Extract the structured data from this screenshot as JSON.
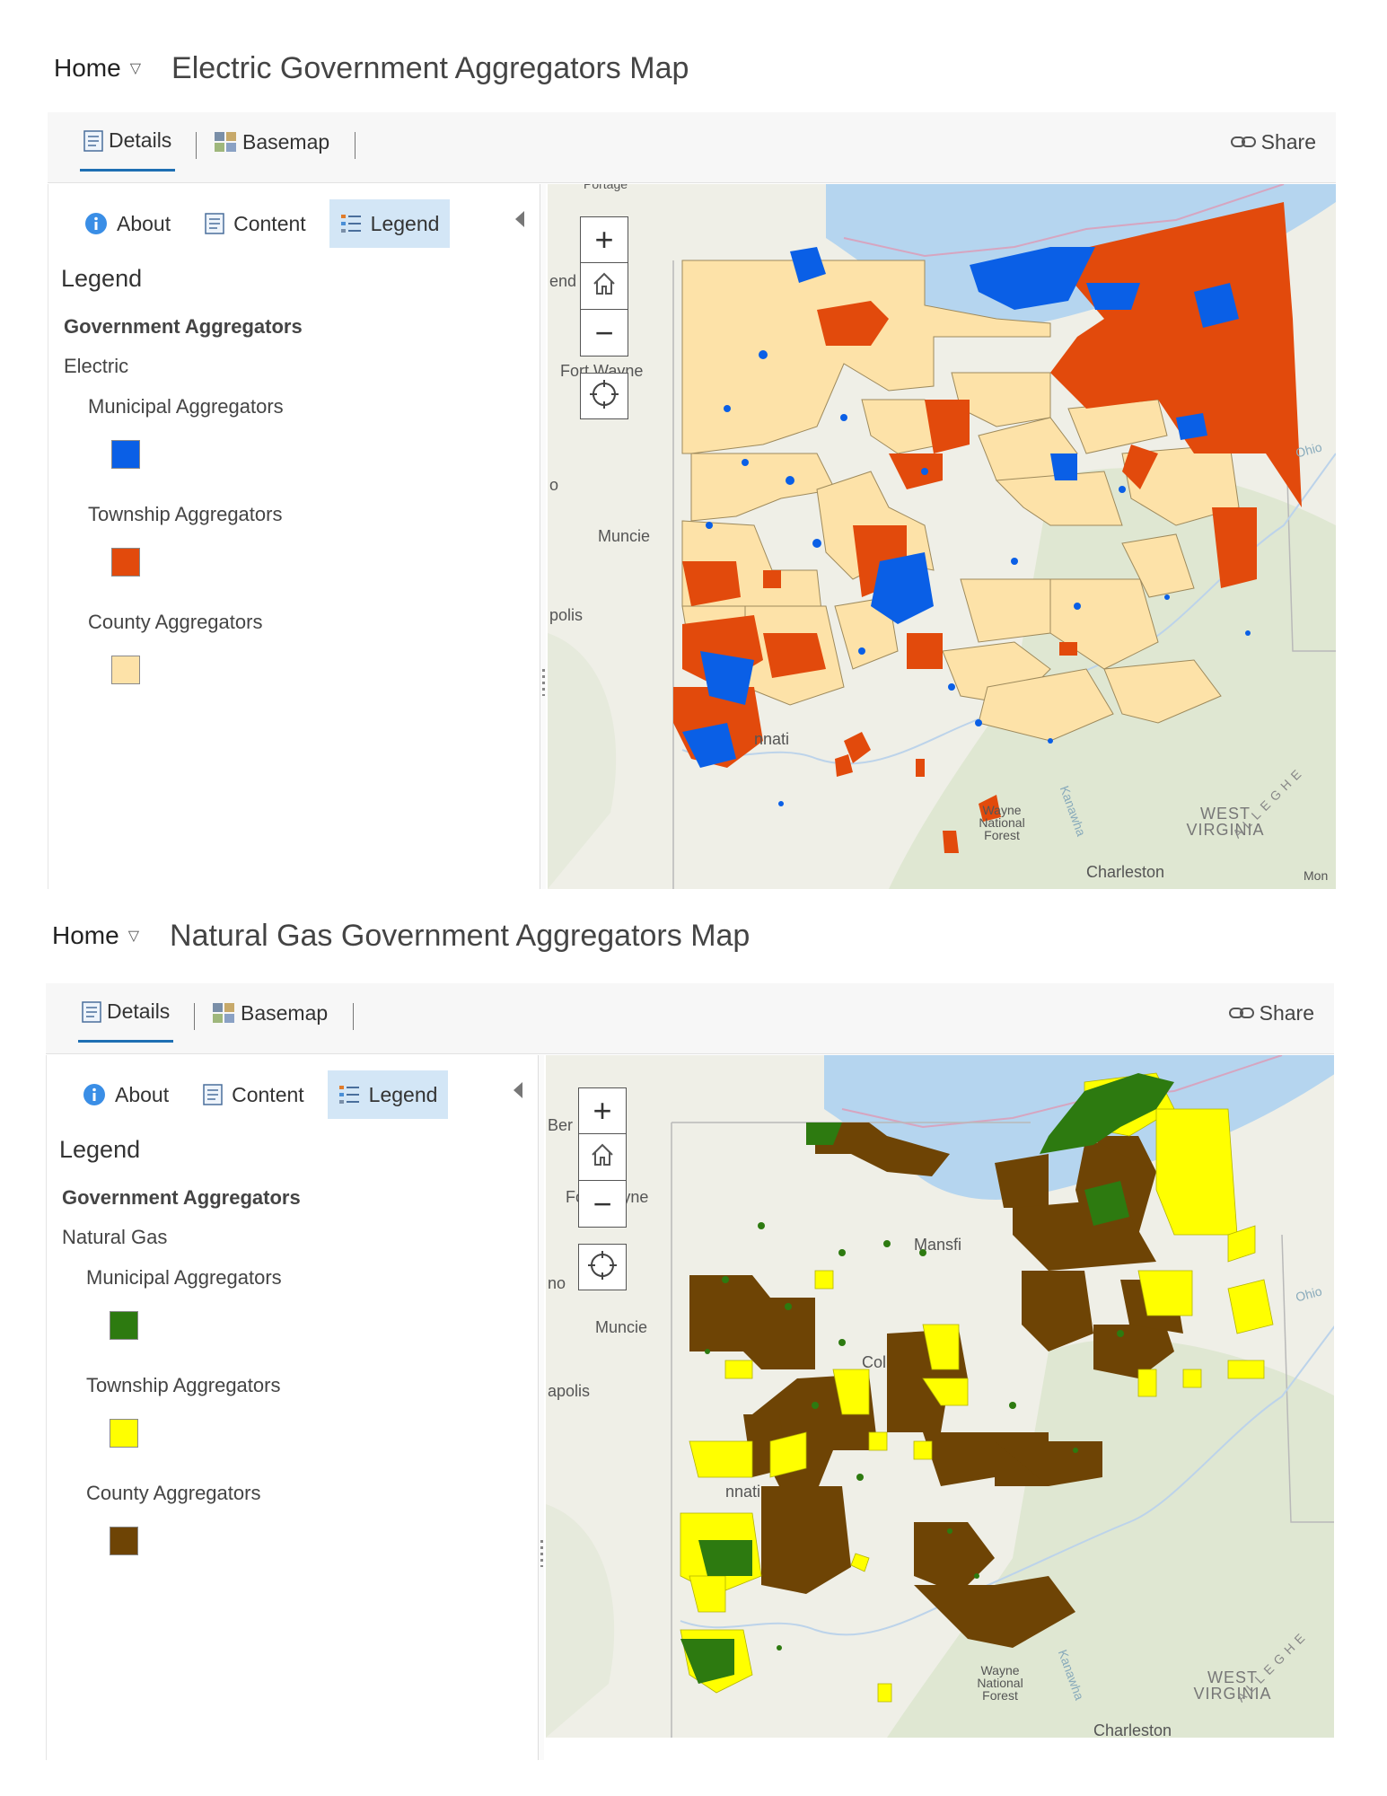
{
  "maps": [
    {
      "header": {
        "home_label": "Home",
        "title": "Electric Government Aggregators Map"
      },
      "toolbar": {
        "details_label": "Details",
        "basemap_label": "Basemap",
        "share_label": "Share"
      },
      "side_tabs": {
        "about_label": "About",
        "content_label": "Content",
        "legend_label": "Legend"
      },
      "legend": {
        "heading": "Legend",
        "group": "Government Aggregators",
        "layer": "Electric",
        "items": [
          {
            "label": "Municipal Aggregators",
            "color": "#0a5fe6"
          },
          {
            "label": "Township Aggregators",
            "color": "#e24a0c"
          },
          {
            "label": "County Aggregators",
            "color": "#fde2a8"
          }
        ]
      },
      "map_labels": {
        "portage": "Portage",
        "fort_wayne": "Fort Wayne",
        "muncie": "Muncie",
        "indianapolis": "polis",
        "cincinnati": "nnati",
        "ohio_river": "Ohio",
        "wayne_forest": "Wayne National Forest",
        "kanawha": "Kanawha",
        "west_virginia": "WEST VIRGINIA",
        "charleston": "Charleston",
        "allegheny": "ALLEGHE",
        "left_o": "o",
        "left_end": "end",
        "monongahela": "Mon"
      }
    },
    {
      "header": {
        "home_label": "Home",
        "title": "Natural Gas Government Aggregators Map"
      },
      "toolbar": {
        "details_label": "Details",
        "basemap_label": "Basemap",
        "share_label": "Share"
      },
      "side_tabs": {
        "about_label": "About",
        "content_label": "Content",
        "legend_label": "Legend"
      },
      "legend": {
        "heading": "Legend",
        "group": "Government Aggregators",
        "layer": "Natural Gas",
        "items": [
          {
            "label": "Municipal Aggregators",
            "color": "#2d7a10"
          },
          {
            "label": "Township Aggregators",
            "color": "#ffff00"
          },
          {
            "label": "County Aggregators",
            "color": "#6e4405"
          }
        ]
      },
      "map_labels": {
        "fort_wayne": "Fort Wayne",
        "muncie": "Muncie",
        "indianapolis": "apolis",
        "cincinnati": "nnati",
        "mansfield": "Mansfi",
        "columbus": "Col",
        "ohio_river": "Ohio",
        "wayne_forest": "Wayne National Forest",
        "kanawha": "Kanawha",
        "west_virginia": "WEST VIRGINIA",
        "charleston": "Charleston",
        "allegheny": "ALLEGHE",
        "left_o": "no",
        "left_ber": "Ber"
      }
    }
  ]
}
